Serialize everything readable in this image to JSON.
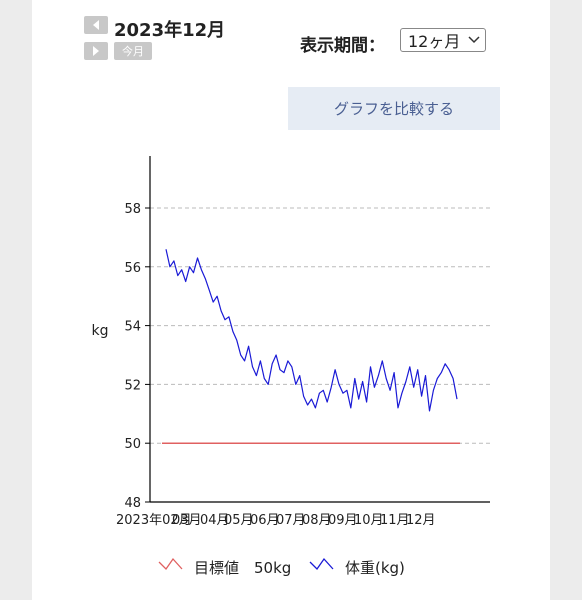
{
  "header": {
    "month": "2023年12月",
    "today_label": "今月",
    "period_label": "表示期間：",
    "period_value": "12ヶ月",
    "compare_button": "グラフを比較する"
  },
  "legend": {
    "target_label": "目標値　50kg",
    "weight_label": "体重(kg)"
  },
  "colors": {
    "target": "#e06060",
    "weight": "#1a1ad6",
    "grid": "#bbbbbb",
    "axis": "#000000"
  },
  "chart_data": {
    "type": "line",
    "ylabel": "kg",
    "xlabel": "",
    "ylim": [
      48,
      58
    ],
    "yticks": [
      "48",
      "50",
      "52",
      "54",
      "56",
      "58"
    ],
    "x_tick_labels": [
      "2023年02月",
      "03月",
      "04月",
      "05月",
      "06月",
      "07月",
      "08月",
      "09月",
      "10月",
      "11月",
      "12月"
    ],
    "grid": true,
    "target": {
      "name": "目標値",
      "value": 50
    },
    "series": [
      {
        "name": "体重",
        "values": [
          56.6,
          56.0,
          56.2,
          55.7,
          55.9,
          55.5,
          56.0,
          55.8,
          56.3,
          55.9,
          55.6,
          55.2,
          54.8,
          55.0,
          54.5,
          54.2,
          54.3,
          53.8,
          53.5,
          53.0,
          52.8,
          53.3,
          52.6,
          52.3,
          52.8,
          52.2,
          52.0,
          52.7,
          53.0,
          52.5,
          52.4,
          52.8,
          52.6,
          52.0,
          52.3,
          51.6,
          51.3,
          51.5,
          51.2,
          51.7,
          51.8,
          51.4,
          51.9,
          52.5,
          52.0,
          51.7,
          51.8,
          51.2,
          52.2,
          51.5,
          52.1,
          51.4,
          52.6,
          51.9,
          52.3,
          52.8,
          52.2,
          51.8,
          52.4,
          51.2,
          51.7,
          52.1,
          52.6,
          51.9,
          52.5,
          51.6,
          52.3,
          51.1,
          51.8,
          52.2,
          52.4,
          52.7,
          52.5,
          52.2,
          51.5
        ]
      }
    ]
  }
}
